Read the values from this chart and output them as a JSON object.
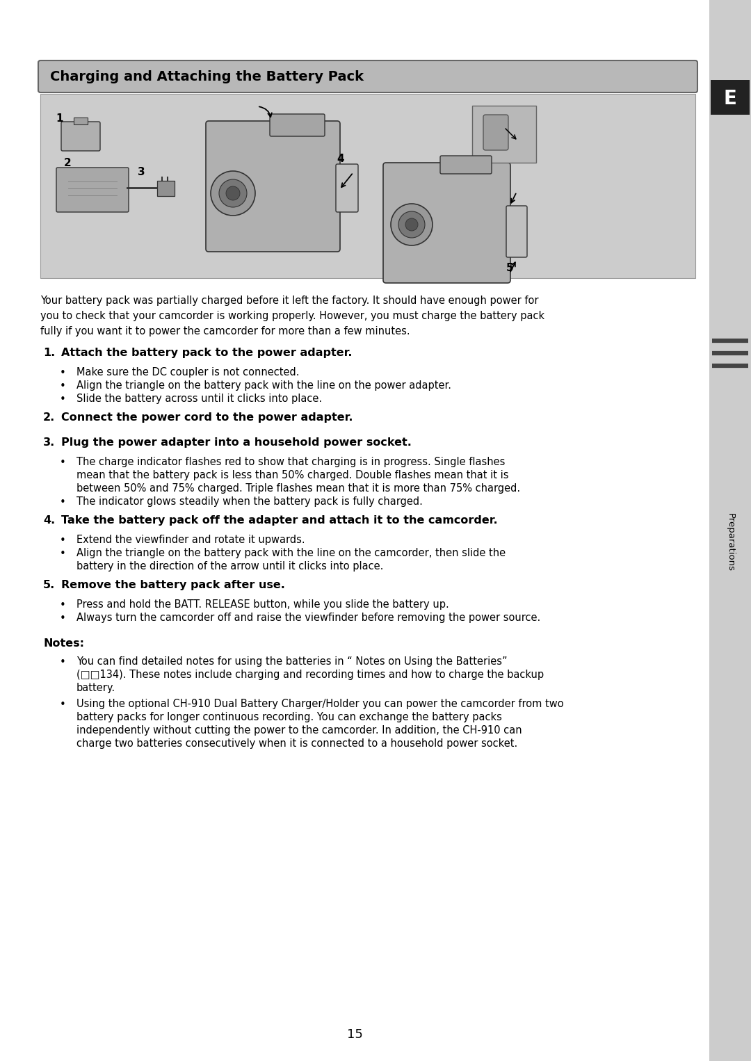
{
  "page_bg": "#ffffff",
  "header_bg": "#b8b8b8",
  "header_text": "Charging and Attaching the Battery Pack",
  "header_text_color": "#000000",
  "image_area_bg": "#cccccc",
  "side_tab_bg": "#222222",
  "side_tab_text": "E",
  "side_tab_text_color": "#ffffff",
  "side_label_text": "Preparations",
  "side_label_color": "#000000",
  "page_number": "15",
  "right_strip_bg": "#cccccc",
  "right_strip_line_color": "#555555",
  "intro_text": "Your battery pack was partially charged before it left the factory. It should have enough power for you to check that your camcorder is working properly. However, you must charge the battery pack fully if you want it to power the camcorder for more than a few minutes.",
  "step1_head": "1. Attach the battery pack to the power adapter.",
  "step1_b1": "Make sure the DC coupler is not connected.",
  "step1_b2": "Align the triangle on the battery pack with the line on the power adapter.",
  "step1_b3": "Slide the battery across until it clicks into place.",
  "step2_head": "2. Connect the power cord to the power adapter.",
  "step3_head": "3. Plug the power adapter into a household power socket.",
  "step3_b1": "The charge indicator flashes red to show that charging is in progress. Single flashes mean that the battery pack is less than 50% charged. Double flashes mean that it is between 50% and 75% charged. Triple flashes mean that it is more than 75% charged.",
  "step3_b2": "The indicator glows steadily when the battery pack is fully charged.",
  "step4_head": "4. Take the battery pack off the adapter and attach it to the camcorder.",
  "step4_b1": "Extend the viewfinder and rotate it upwards.",
  "step4_b2": "Align the triangle on the battery pack with the line on the camcorder, then slide the battery in the direction of the arrow until it clicks into place.",
  "step5_head": "5. Remove the battery pack after use.",
  "step5_b1": "Press and hold the BATT. RELEASE button, while you slide the battery up.",
  "step5_b2": "Always turn the camcorder off and raise the viewfinder before removing the power source.",
  "notes_head": "Notes:",
  "note1": "You can find detailed notes for using the batteries in “ Notes on Using the Batteries”  (□□134). These notes include charging and recording times and how to charge the backup battery.",
  "note2": "Using the optional CH-910 Dual Battery Charger/Holder you can power the camcorder from two battery packs for longer continuous recording. You can exchange the battery packs independently without cutting the power to the camcorder. In addition, the CH-910 can charge two batteries consecutively when it is connected to a household power socket."
}
